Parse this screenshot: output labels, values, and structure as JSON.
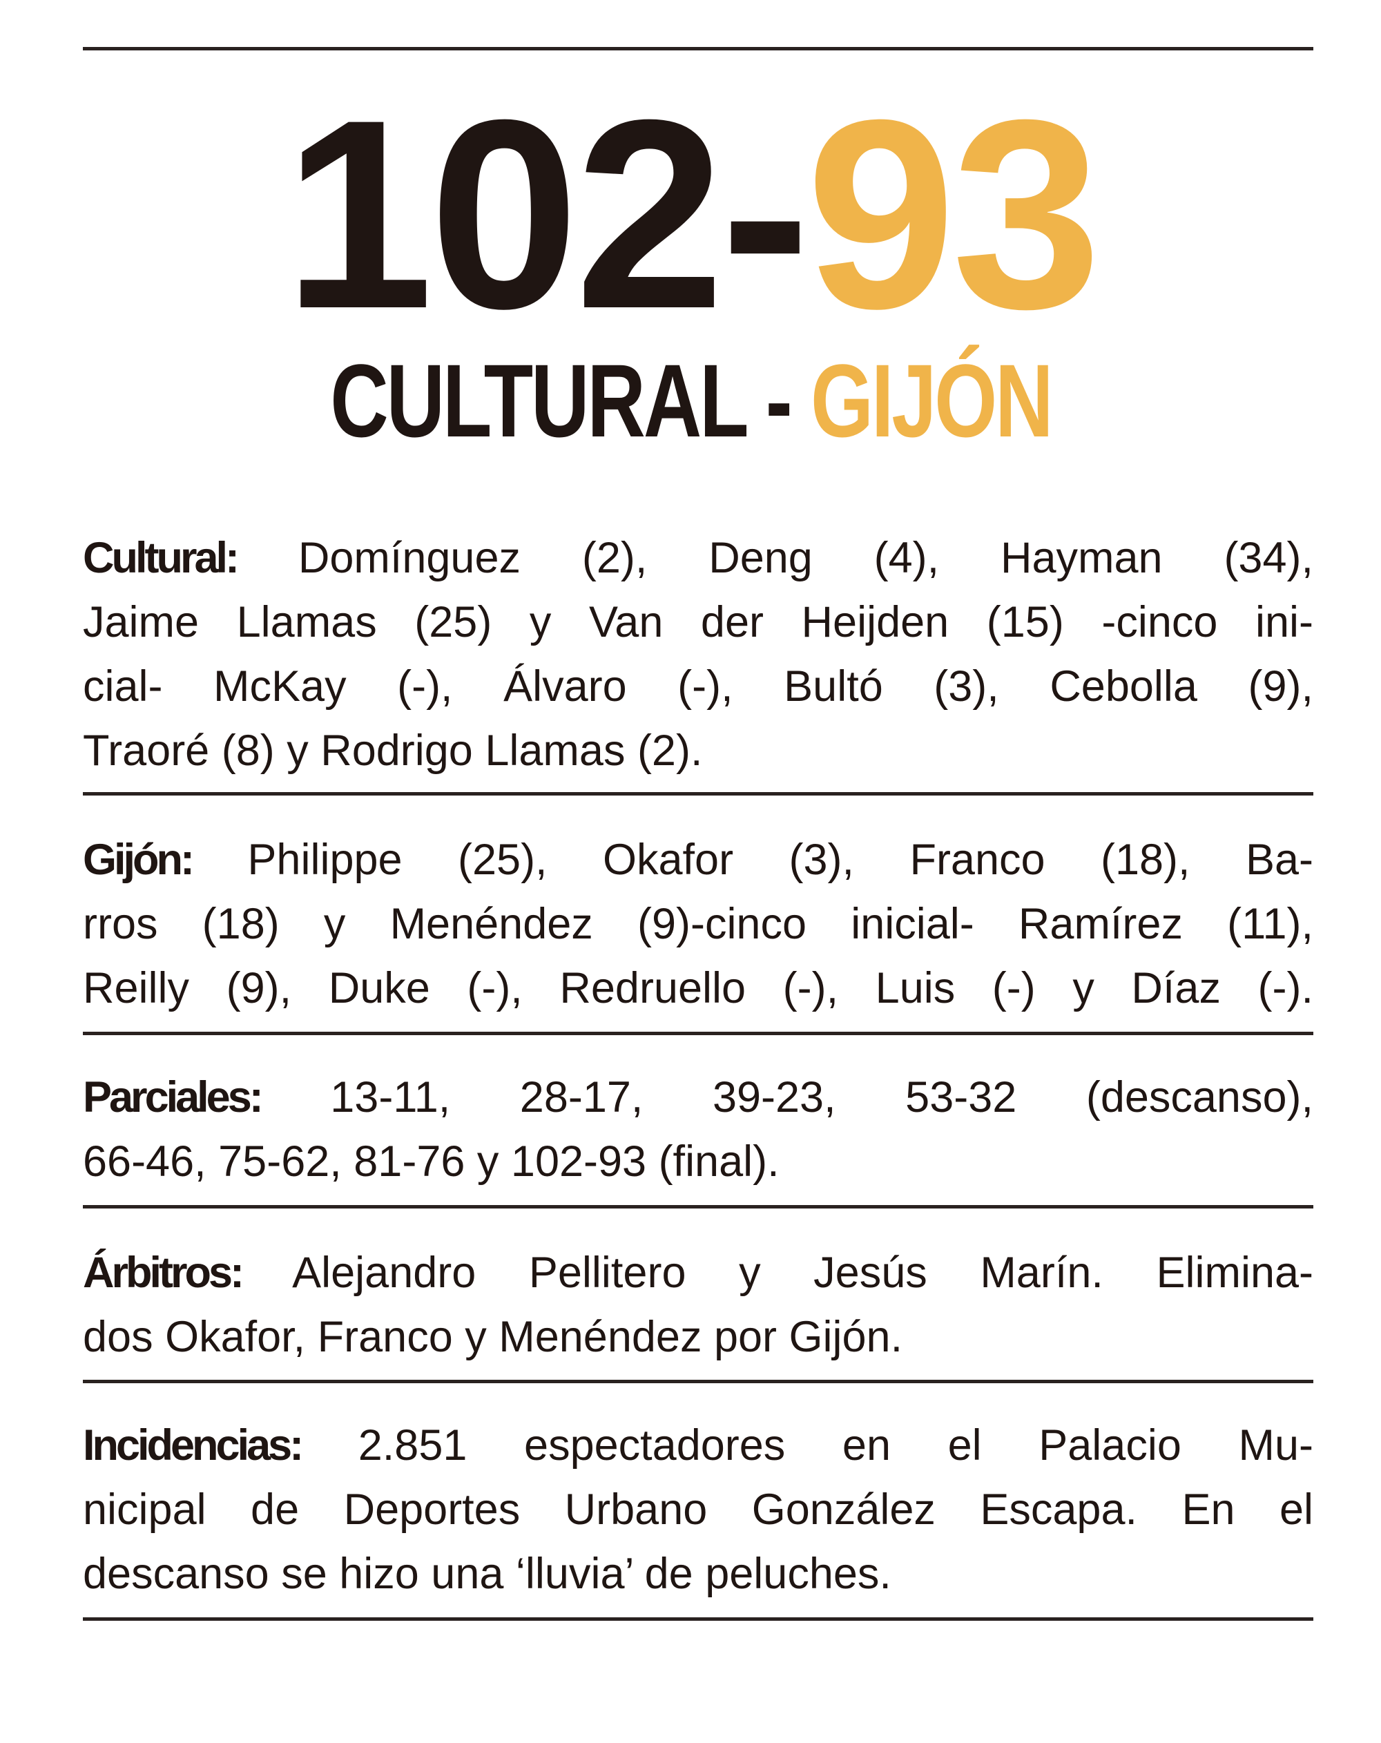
{
  "score": {
    "home": "102",
    "separator": "-",
    "away": "93"
  },
  "teams": {
    "home": "CULTURAL",
    "separator": " - ",
    "away": "GIJÓN"
  },
  "colors": {
    "text": "#1f1512",
    "accent": "#f0b44a"
  },
  "sections": [
    {
      "label": "Cultural:",
      "lines": [
        " Domínguez (2), Deng (4), Hayman (34),",
        "Jaime Llamas (25) y Van der Heijden (15) -cinco ini-",
        "cial- McKay (-), Álvaro (-), Bultó (3), Cebolla (9),",
        "Traoré (8) y Rodrigo Llamas (2)."
      ]
    },
    {
      "label": "Gijón:",
      "lines": [
        " Philippe (25), Okafor (3), Franco (18), Ba-",
        "rros (18) y Menéndez (9)-cinco inicial- Ramírez (11),",
        "Reilly (9), Duke (-), Redruello (-), Luis (-) y Díaz (-)."
      ]
    },
    {
      "label": "Parciales:",
      "lines": [
        " 13-11, 28-17, 39-23, 53-32 (descanso),",
        "66-46, 75-62, 81-76 y 102-93 (final)."
      ]
    },
    {
      "label": "Árbitros:",
      "lines": [
        " Alejandro Pellitero y Jesús Marín. Elimina-",
        "dos Okafor, Franco y Menéndez por Gijón."
      ]
    },
    {
      "label": "Incidencias:",
      "lines": [
        " 2.851 espectadores en el Palacio Mu-",
        "nicipal de Deportes Urbano González Escapa. En el",
        "descanso se hizo una ‘lluvia’ de peluches."
      ]
    }
  ]
}
